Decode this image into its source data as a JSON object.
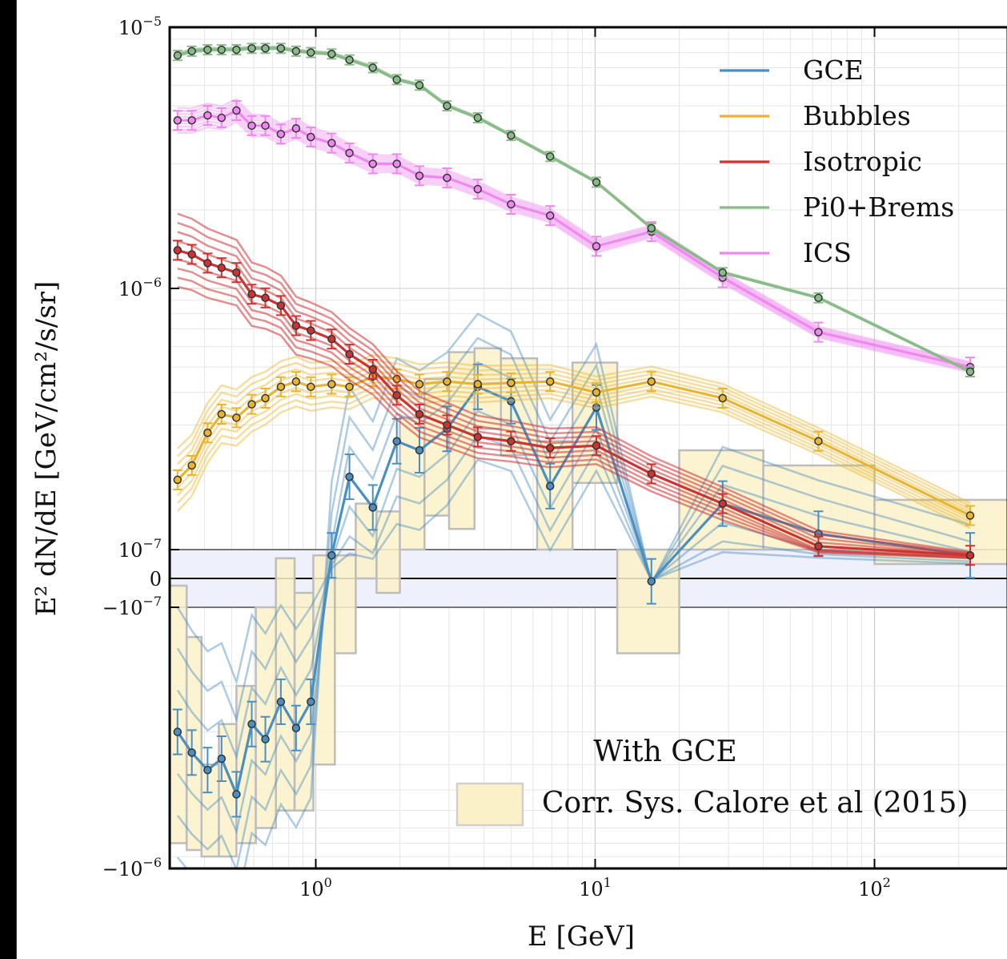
{
  "chart_data": {
    "type": "line",
    "xlabel": "E [GeV]",
    "ylabel": "E² dN/dE [GeV/cm²/s/sr]",
    "x_scale": "log",
    "y_scale": "symlog",
    "y_linthresh": 1e-07,
    "xlim": [
      0.3,
      300
    ],
    "ylim": [
      -1e-06,
      1e-05
    ],
    "grid": true,
    "legend_position": "top-right",
    "x_ticks": [
      {
        "value": 1,
        "label": "10",
        "exp": "0"
      },
      {
        "value": 10,
        "label": "10",
        "exp": "1"
      },
      {
        "value": 100,
        "label": "10",
        "exp": "2"
      }
    ],
    "y_ticks": [
      {
        "value": 1e-05,
        "label": "10",
        "exp": "−5"
      },
      {
        "value": 1e-06,
        "label": "10",
        "exp": "−6"
      },
      {
        "value": 1e-07,
        "label": "10",
        "exp": "−7"
      },
      {
        "value": 0,
        "label": "0",
        "exp": ""
      },
      {
        "value": -1e-07,
        "label": "−10",
        "exp": "−7"
      },
      {
        "value": -1e-06,
        "label": "−10",
        "exp": "−6"
      }
    ],
    "annotation": "With GCE",
    "systematics_label": "Corr. Sys. Calore et al (2015)",
    "x": [
      0.32,
      0.36,
      0.41,
      0.46,
      0.52,
      0.59,
      0.66,
      0.75,
      0.85,
      0.96,
      1.14,
      1.32,
      1.6,
      1.95,
      2.35,
      2.95,
      3.8,
      5.0,
      6.9,
      10.1,
      15.9,
      28.6,
      63,
      220
    ],
    "series": [
      {
        "name": "Pi0+Brems",
        "color": "#88bb88",
        "values": [
          7.8e-06,
          8.1e-06,
          8.2e-06,
          8.2e-06,
          8.2e-06,
          8.3e-06,
          8.3e-06,
          8.3e-06,
          8.1e-06,
          8e-06,
          7.9e-06,
          7.5e-06,
          7e-06,
          6.3e-06,
          6e-06,
          5e-06,
          4.5e-06,
          3.85e-06,
          3.2e-06,
          2.55e-06,
          1.7e-06,
          1.15e-06,
          9.2e-07,
          4.8e-07
        ]
      },
      {
        "name": "ICS",
        "color": "#ee88ee",
        "values": [
          4.4e-06,
          4.4e-06,
          4.6e-06,
          4.5e-06,
          4.8e-06,
          4.2e-06,
          4.2e-06,
          3.9e-06,
          4.1e-06,
          3.8e-06,
          3.6e-06,
          3.3e-06,
          3e-06,
          3e-06,
          2.7e-06,
          2.65e-06,
          2.4e-06,
          2.1e-06,
          1.9e-06,
          1.45e-06,
          1.65e-06,
          1.1e-06,
          6.8e-07,
          5e-07
        ]
      },
      {
        "name": "Isotropic",
        "color": "#cc3333",
        "values": [
          1.4e-06,
          1.35e-06,
          1.25e-06,
          1.2e-06,
          1.15e-06,
          9.5e-07,
          9.2e-07,
          8.6e-07,
          7.2e-07,
          6.9e-07,
          6.4e-07,
          5.6e-07,
          4.9e-07,
          3.9e-07,
          3.3e-07,
          3e-07,
          2.7e-07,
          2.6e-07,
          2.45e-07,
          2.5e-07,
          1.95e-07,
          1.5e-07,
          1.03e-07,
          8e-08
        ]
      },
      {
        "name": "Bubbles",
        "color": "#e8b530",
        "values": [
          1.85e-07,
          2.1e-07,
          2.8e-07,
          3.3e-07,
          3.2e-07,
          3.6e-07,
          3.8e-07,
          4.2e-07,
          4.4e-07,
          4.2e-07,
          4.3e-07,
          4.2e-07,
          4.6e-07,
          4.5e-07,
          4.3e-07,
          4.4e-07,
          4.3e-07,
          4.35e-07,
          4.4e-07,
          4e-07,
          4.4e-07,
          3.8e-07,
          2.6e-07,
          1.35e-07
        ]
      },
      {
        "name": "GCE",
        "color": "#4a8fc0",
        "values": [
          -3e-07,
          -3.6e-07,
          -4.2e-07,
          -3.8e-07,
          -5.2e-07,
          -2.8e-07,
          -3.2e-07,
          -2.3e-07,
          -2.9e-07,
          -2.3e-07,
          8e-08,
          1.9e-07,
          1.45e-07,
          2.6e-07,
          2.4e-07,
          2.9e-07,
          4.2e-07,
          3.7e-07,
          1.75e-07,
          3.5e-07,
          -1e-08,
          1.5e-07,
          1.15e-07,
          8e-08
        ]
      }
    ],
    "systematics_boxes": [
      {
        "x0": 0.3,
        "x1": 0.345,
        "y0": -8e-07,
        "y1": -2.5e-08
      },
      {
        "x0": 0.345,
        "x1": 0.39,
        "y0": -8.5e-07,
        "y1": -1.3e-07
      },
      {
        "x0": 0.39,
        "x1": 0.45,
        "y0": -9e-07,
        "y1": -4e-07
      },
      {
        "x0": 0.45,
        "x1": 0.52,
        "y0": -9e-07,
        "y1": -2.8e-07
      },
      {
        "x0": 0.52,
        "x1": 0.61,
        "y0": -8e-07,
        "y1": -2e-07
      },
      {
        "x0": 0.61,
        "x1": 0.72,
        "y0": -7e-07,
        "y1": -1e-07
      },
      {
        "x0": 0.72,
        "x1": 0.84,
        "y0": -6e-07,
        "y1": 7e-08
      },
      {
        "x0": 0.84,
        "x1": 0.98,
        "y0": -6e-07,
        "y1": -5e-08
      },
      {
        "x0": 0.98,
        "x1": 1.17,
        "y0": -4e-07,
        "y1": 8e-08
      },
      {
        "x0": 1.17,
        "x1": 1.39,
        "y0": -1.5e-07,
        "y1": 8e-08
      },
      {
        "x0": 1.39,
        "x1": 1.65,
        "y0": 0.0,
        "y1": 1.5e-07
      },
      {
        "x0": 1.65,
        "x1": 2.0,
        "y0": -5e-08,
        "y1": 1.4e-07
      },
      {
        "x0": 2.0,
        "x1": 2.45,
        "y0": 1e-07,
        "y1": 3.2e-07
      },
      {
        "x0": 2.45,
        "x1": 3.0,
        "y0": 1.35e-07,
        "y1": 4.5e-07
      },
      {
        "x0": 3.0,
        "x1": 3.7,
        "y0": 1.2e-07,
        "y1": 5.7e-07
      },
      {
        "x0": 3.7,
        "x1": 4.6,
        "y0": 2.9e-07,
        "y1": 5.9e-07
      },
      {
        "x0": 4.6,
        "x1": 6.2,
        "y0": 2.3e-07,
        "y1": 5.4e-07
      },
      {
        "x0": 6.2,
        "x1": 8.3,
        "y0": 1e-07,
        "y1": 2.6e-07
      },
      {
        "x0": 8.3,
        "x1": 12.0,
        "y0": 1.8e-07,
        "y1": 5.2e-07
      },
      {
        "x0": 12.0,
        "x1": 20.0,
        "y0": -1.5e-07,
        "y1": 1e-07
      },
      {
        "x0": 20.0,
        "x1": 40.0,
        "y0": 1e-07,
        "y1": 2.4e-07
      },
      {
        "x0": 40.0,
        "x1": 100.0,
        "y0": 1e-07,
        "y1": 2.1e-07
      },
      {
        "x0": 100.0,
        "x1": 300.0,
        "y0": 5e-08,
        "y1": 1.55e-07
      }
    ]
  }
}
